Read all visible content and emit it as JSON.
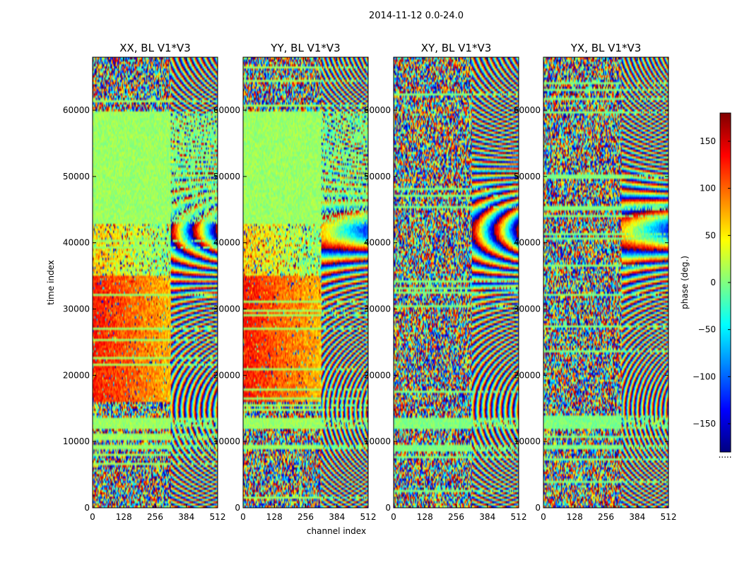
{
  "chart_data": {
    "type": "heatmap",
    "suptitle": "2014-11-12 0.0-24.0",
    "xlabel": "channel index",
    "ylabel": "time index",
    "xlim": [
      0,
      512
    ],
    "ylim": [
      0,
      68000
    ],
    "x_ticks": [
      0,
      128,
      256,
      384,
      512
    ],
    "y_ticks": [
      0,
      10000,
      20000,
      30000,
      40000,
      50000,
      60000
    ],
    "colorbar": {
      "label": "phase (deg.)",
      "range": [
        -180,
        180
      ],
      "ticks": [
        -150,
        -100,
        -50,
        0,
        50,
        100,
        150
      ],
      "colors": [
        "#000080",
        "#0000ff",
        "#0080ff",
        "#00ffff",
        "#80ff80",
        "#ffff00",
        "#ff8000",
        "#ff0000",
        "#800000"
      ],
      "tick_labels": [
        "−150",
        "−100",
        "−50",
        "0",
        "50",
        "100",
        "150"
      ]
    },
    "panels": [
      {
        "title": "XX, BL V1*V3",
        "description": "phase waterfall; coherent region (~0-20 deg) at time 43000-60000 for channels 0-320; red/orange region (~100-150 deg) for time 16000-35000",
        "base_phase": 10,
        "hot_band": [
          16000,
          35000
        ],
        "hot_phase": 130,
        "coherent_bands": [
          [
            43000,
            60000
          ],
          [
            12000,
            13500
          ],
          [
            9000,
            9500
          ]
        ],
        "edge_channel": 320
      },
      {
        "title": "YY, BL V1*V3",
        "description": "similar to XX; coherent at time 43000-60000 and hot band 16000-35000",
        "base_phase": 10,
        "hot_band": [
          16000,
          35000
        ],
        "hot_phase": 130,
        "coherent_bands": [
          [
            43000,
            60000
          ],
          [
            12000,
            13500
          ],
          [
            9000,
            9500
          ]
        ],
        "edge_channel": 320
      },
      {
        "title": "XY, BL V1*V3",
        "description": "mostly random phase noise with a few coherent horizontal stripes",
        "base_phase": 0,
        "hot_band": null,
        "hot_phase": null,
        "coherent_bands": [
          [
            12000,
            13500
          ],
          [
            9000,
            9500
          ]
        ],
        "edge_channel": 320
      },
      {
        "title": "YX, BL V1*V3",
        "description": "mostly random phase noise with a few coherent horizontal stripes",
        "base_phase": 0,
        "hot_band": null,
        "hot_phase": null,
        "coherent_bands": [
          [
            12000,
            13500
          ],
          [
            9000,
            9500
          ]
        ],
        "edge_channel": 320
      }
    ],
    "colorbar_footnote": "....."
  }
}
